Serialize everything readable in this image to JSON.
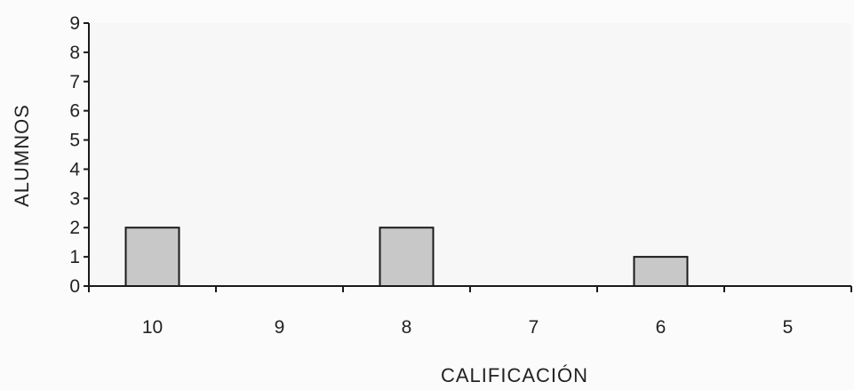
{
  "chart_data": {
    "type": "bar",
    "categories": [
      "10",
      "9",
      "8",
      "7",
      "6",
      "5"
    ],
    "values": [
      2,
      0,
      2,
      0,
      1,
      0
    ],
    "xlabel": "CALIFICACIÓN",
    "ylabel": "ALUMNOS",
    "ylim": [
      0,
      9
    ],
    "yticks": [
      0,
      1,
      2,
      3,
      4,
      5,
      6,
      7,
      8,
      9
    ],
    "grid": false,
    "legend": "none",
    "colors": {
      "bar_fill": "#c8c8c8",
      "bar_stroke": "#1a1a1a",
      "axis": "#1a1a1a",
      "plot_background": "#f7f7f7"
    }
  }
}
